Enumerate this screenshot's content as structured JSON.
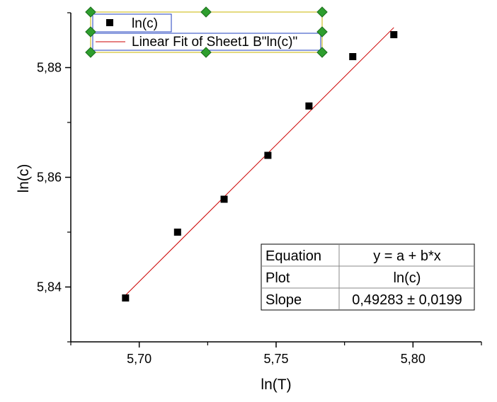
{
  "chart_data": {
    "type": "scatter",
    "xlabel": "ln(T)",
    "ylabel": "ln(c)",
    "xlim": [
      5.675,
      5.825
    ],
    "ylim": [
      5.83,
      5.89
    ],
    "x_ticks": [
      5.7,
      5.75,
      5.8
    ],
    "x_tick_labels": [
      "5,70",
      "5,75",
      "5,80"
    ],
    "y_ticks": [
      5.84,
      5.86,
      5.88
    ],
    "y_tick_labels": [
      "5,84",
      "5,86",
      "5,88"
    ],
    "grid": false,
    "legend_placement": "top-left",
    "series": [
      {
        "name": "ln(c)",
        "marker": "square",
        "color": "#000000",
        "x": [
          5.695,
          5.714,
          5.731,
          5.747,
          5.762,
          5.778,
          5.793
        ],
        "y": [
          5.838,
          5.85,
          5.856,
          5.864,
          5.873,
          5.882,
          5.886
        ]
      },
      {
        "name": "Linear Fit of Sheet1 B\"ln(c)\"",
        "kind": "line",
        "color": "#cc0000",
        "x": [
          5.695,
          5.793
        ],
        "y": [
          5.8385,
          5.8873
        ]
      }
    ],
    "stats_table": [
      [
        "Equation",
        "y = a + b*x"
      ],
      [
        "Plot",
        "ln(c)"
      ],
      [
        "Slope",
        "0,49283 ± 0,0199"
      ]
    ]
  }
}
